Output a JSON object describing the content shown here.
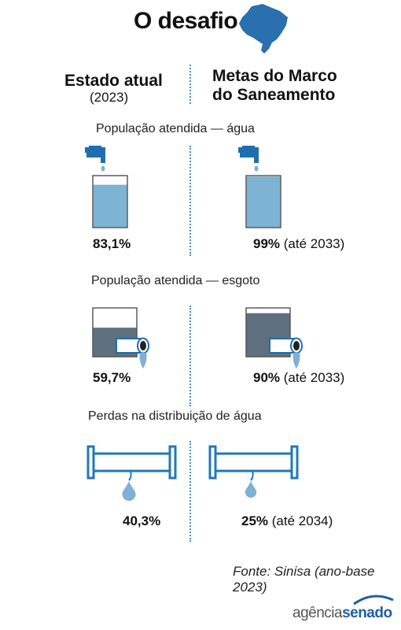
{
  "title": "O desafio",
  "columns": {
    "left": {
      "heading": "Estado atual",
      "subheading": "(2023)"
    },
    "right": {
      "heading_line1": "Metas do Marco",
      "heading_line2": "do Saneamento"
    }
  },
  "colors": {
    "water_fill": "#7db3d3",
    "sewage_fill": "#5e707d",
    "icon_blue": "#1f6fae",
    "pipe_blue": "#1f79b8",
    "drop_blue": "#7fb0d5",
    "divider": "#4a8fc4",
    "map_blue": "#2a6fae"
  },
  "icons": [
    "brazil-map-icon",
    "faucet-icon",
    "drain-pipe-icon",
    "leaking-pipe-icon"
  ],
  "chart_data": [
    {
      "type": "table",
      "title": "População atendida — água",
      "rows": [
        {
          "column": "Estado atual (2023)",
          "value": 83.1,
          "label": "83,1%",
          "note": ""
        },
        {
          "column": "Metas do Marco do Saneamento",
          "value": 99,
          "label": "99%",
          "note": "(até 2033)"
        }
      ]
    },
    {
      "type": "table",
      "title": "População atendida — esgoto",
      "rows": [
        {
          "column": "Estado atual (2023)",
          "value": 59.7,
          "label": "59,7%",
          "note": ""
        },
        {
          "column": "Metas do Marco do Saneamento",
          "value": 90,
          "label": "90%",
          "note": "(até 2033)"
        }
      ]
    },
    {
      "type": "table",
      "title": "Perdas na distribuição de água",
      "rows": [
        {
          "column": "Estado atual (2023)",
          "value": 40.3,
          "label": "40,3%",
          "note": ""
        },
        {
          "column": "Metas do Marco do Saneamento",
          "value": 25,
          "label": "25%",
          "note": "(até 2034)"
        }
      ]
    }
  ],
  "source": "Fonte: Sinisa (ano-base 2023)",
  "logo": {
    "part1": "agência",
    "part2": "senado"
  }
}
